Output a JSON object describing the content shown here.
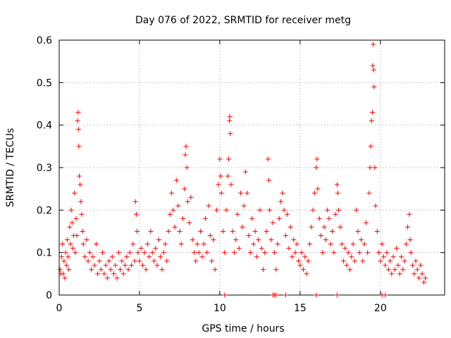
{
  "chart_data": {
    "type": "scatter",
    "title": "Day 076 of 2022, SRMTID for receiver metg",
    "xlabel": "GPS time / hours",
    "ylabel": "SRMTID / TECUs",
    "xlim": [
      0,
      24
    ],
    "ylim": [
      0,
      0.6
    ],
    "x_ticks": [
      0,
      5,
      10,
      15,
      20
    ],
    "y_ticks": [
      0,
      0.1,
      0.2,
      0.3,
      0.4,
      0.5,
      0.6
    ],
    "x_tick_labels": [
      "0",
      "5",
      "10",
      "15",
      "20"
    ],
    "y_tick_labels": [
      "0",
      "0.1",
      "0.2",
      "0.3",
      "0.4",
      "0.5",
      "0.6"
    ],
    "grid": true,
    "marker": "+",
    "color": "#ff0000",
    "series": [
      {
        "name": "SRMTID",
        "points": [
          [
            0.05,
            0.06
          ],
          [
            0.1,
            0.05
          ],
          [
            0.15,
            0.09
          ],
          [
            0.2,
            0.12
          ],
          [
            0.25,
            0.05
          ],
          [
            0.3,
            0.08
          ],
          [
            0.35,
            0.04
          ],
          [
            0.4,
            0.1
          ],
          [
            0.45,
            0.07
          ],
          [
            0.5,
            0.13
          ],
          [
            0.55,
            0.09
          ],
          [
            0.6,
            0.06
          ],
          [
            0.65,
            0.16
          ],
          [
            0.7,
            0.12
          ],
          [
            0.75,
            0.2
          ],
          [
            0.8,
            0.17
          ],
          [
            0.85,
            0.11
          ],
          [
            0.9,
            0.14
          ],
          [
            0.95,
            0.24
          ],
          [
            1.0,
            0.1
          ],
          [
            1.05,
            0.18
          ],
          [
            1.1,
            0.14
          ],
          [
            1.15,
            0.41
          ],
          [
            1.18,
            0.43
          ],
          [
            1.2,
            0.39
          ],
          [
            1.22,
            0.35
          ],
          [
            1.25,
            0.28
          ],
          [
            1.3,
            0.26
          ],
          [
            1.35,
            0.22
          ],
          [
            1.4,
            0.19
          ],
          [
            1.45,
            0.15
          ],
          [
            1.5,
            0.12
          ],
          [
            1.6,
            0.09
          ],
          [
            1.7,
            0.13
          ],
          [
            1.8,
            0.08
          ],
          [
            1.9,
            0.1
          ],
          [
            2.0,
            0.06
          ],
          [
            2.1,
            0.09
          ],
          [
            2.2,
            0.07
          ],
          [
            2.3,
            0.12
          ],
          [
            2.4,
            0.05
          ],
          [
            2.5,
            0.08
          ],
          [
            2.6,
            0.06
          ],
          [
            2.7,
            0.1
          ],
          [
            2.8,
            0.05
          ],
          [
            2.9,
            0.07
          ],
          [
            3.0,
            0.04
          ],
          [
            3.1,
            0.08
          ],
          [
            3.2,
            0.06
          ],
          [
            3.3,
            0.09
          ],
          [
            3.4,
            0.05
          ],
          [
            3.5,
            0.07
          ],
          [
            3.6,
            0.04
          ],
          [
            3.7,
            0.1
          ],
          [
            3.8,
            0.06
          ],
          [
            3.9,
            0.08
          ],
          [
            4.0,
            0.05
          ],
          [
            4.1,
            0.07
          ],
          [
            4.2,
            0.09
          ],
          [
            4.3,
            0.06
          ],
          [
            4.4,
            0.1
          ],
          [
            4.5,
            0.07
          ],
          [
            4.6,
            0.12
          ],
          [
            4.7,
            0.08
          ],
          [
            4.75,
            0.22
          ],
          [
            4.8,
            0.19
          ],
          [
            4.85,
            0.15
          ],
          [
            4.9,
            0.1
          ],
          [
            5.0,
            0.08
          ],
          [
            5.1,
            0.11
          ],
          [
            5.2,
            0.07
          ],
          [
            5.3,
            0.1
          ],
          [
            5.4,
            0.06
          ],
          [
            5.5,
            0.12
          ],
          [
            5.6,
            0.09
          ],
          [
            5.7,
            0.15
          ],
          [
            5.8,
            0.1
          ],
          [
            5.9,
            0.08
          ],
          [
            6.0,
            0.11
          ],
          [
            6.1,
            0.07
          ],
          [
            6.2,
            0.13
          ],
          [
            6.3,
            0.09
          ],
          [
            6.4,
            0.06
          ],
          [
            6.5,
            0.1
          ],
          [
            6.6,
            0.12
          ],
          [
            6.7,
            0.08
          ],
          [
            6.8,
            0.15
          ],
          [
            6.9,
            0.19
          ],
          [
            7.0,
            0.24
          ],
          [
            7.1,
            0.2
          ],
          [
            7.2,
            0.16
          ],
          [
            7.3,
            0.27
          ],
          [
            7.4,
            0.21
          ],
          [
            7.5,
            0.15
          ],
          [
            7.6,
            0.12
          ],
          [
            7.7,
            0.18
          ],
          [
            7.8,
            0.25
          ],
          [
            7.85,
            0.33
          ],
          [
            7.9,
            0.35
          ],
          [
            7.95,
            0.3
          ],
          [
            8.0,
            0.22
          ],
          [
            8.1,
            0.17
          ],
          [
            8.2,
            0.23
          ],
          [
            8.3,
            0.13
          ],
          [
            8.4,
            0.1
          ],
          [
            8.5,
            0.08
          ],
          [
            8.6,
            0.12
          ],
          [
            8.7,
            0.1
          ],
          [
            8.8,
            0.15
          ],
          [
            8.9,
            0.09
          ],
          [
            9.0,
            0.12
          ],
          [
            9.1,
            0.18
          ],
          [
            9.2,
            0.1
          ],
          [
            9.3,
            0.21
          ],
          [
            9.4,
            0.14
          ],
          [
            9.5,
            0.08
          ],
          [
            9.6,
            0.13
          ],
          [
            9.7,
            0.06
          ],
          [
            9.8,
            0.2
          ],
          [
            9.9,
            0.26
          ],
          [
            10.0,
            0.32
          ],
          [
            10.05,
            0.28
          ],
          [
            10.1,
            0.24
          ],
          [
            10.2,
            0.15
          ],
          [
            10.3,
            0.1
          ],
          [
            10.4,
            0.2
          ],
          [
            10.5,
            0.28
          ],
          [
            10.55,
            0.32
          ],
          [
            10.6,
            0.41
          ],
          [
            10.62,
            0.42
          ],
          [
            10.65,
            0.38
          ],
          [
            10.7,
            0.26
          ],
          [
            10.8,
            0.15
          ],
          [
            10.9,
            0.1
          ],
          [
            11.0,
            0.13
          ],
          [
            11.1,
            0.19
          ],
          [
            11.2,
            0.11
          ],
          [
            11.3,
            0.24
          ],
          [
            11.4,
            0.16
          ],
          [
            11.5,
            0.21
          ],
          [
            11.6,
            0.29
          ],
          [
            11.7,
            0.24
          ],
          [
            11.8,
            0.14
          ],
          [
            11.9,
            0.1
          ],
          [
            12.0,
            0.18
          ],
          [
            12.1,
            0.12
          ],
          [
            12.2,
            0.15
          ],
          [
            12.3,
            0.09
          ],
          [
            12.4,
            0.13
          ],
          [
            12.5,
            0.2
          ],
          [
            12.6,
            0.11
          ],
          [
            12.7,
            0.06
          ],
          [
            12.8,
            0.1
          ],
          [
            12.9,
            0.15
          ],
          [
            13.0,
            0.32
          ],
          [
            13.05,
            0.27
          ],
          [
            13.1,
            0.2
          ],
          [
            13.2,
            0.13
          ],
          [
            13.3,
            0.17
          ],
          [
            13.4,
            0.1
          ],
          [
            13.5,
            0.06
          ],
          [
            13.6,
            0.12
          ],
          [
            13.7,
            0.18
          ],
          [
            13.8,
            0.22
          ],
          [
            13.9,
            0.24
          ],
          [
            14.0,
            0.2
          ],
          [
            14.1,
            0.14
          ],
          [
            14.2,
            0.19
          ],
          [
            14.3,
            0.11
          ],
          [
            14.4,
            0.16
          ],
          [
            14.5,
            0.09
          ],
          [
            14.6,
            0.13
          ],
          [
            14.7,
            0.1
          ],
          [
            14.8,
            0.12
          ],
          [
            14.9,
            0.08
          ],
          [
            15.0,
            0.07
          ],
          [
            15.1,
            0.1
          ],
          [
            15.2,
            0.06
          ],
          [
            15.3,
            0.09
          ],
          [
            15.4,
            0.05
          ],
          [
            15.5,
            0.08
          ],
          [
            15.6,
            0.12
          ],
          [
            15.7,
            0.16
          ],
          [
            15.8,
            0.2
          ],
          [
            15.9,
            0.24
          ],
          [
            16.0,
            0.3
          ],
          [
            16.05,
            0.32
          ],
          [
            16.1,
            0.25
          ],
          [
            16.2,
            0.18
          ],
          [
            16.3,
            0.14
          ],
          [
            16.4,
            0.1
          ],
          [
            16.5,
            0.16
          ],
          [
            16.6,
            0.13
          ],
          [
            16.7,
            0.2
          ],
          [
            16.8,
            0.18
          ],
          [
            16.9,
            0.12
          ],
          [
            17.0,
            0.15
          ],
          [
            17.1,
            0.1
          ],
          [
            17.2,
            0.19
          ],
          [
            17.3,
            0.26
          ],
          [
            17.35,
            0.24
          ],
          [
            17.4,
            0.2
          ],
          [
            17.5,
            0.16
          ],
          [
            17.6,
            0.12
          ],
          [
            17.7,
            0.08
          ],
          [
            17.8,
            0.11
          ],
          [
            17.9,
            0.07
          ],
          [
            18.0,
            0.1
          ],
          [
            18.1,
            0.06
          ],
          [
            18.2,
            0.09
          ],
          [
            18.3,
            0.12
          ],
          [
            18.4,
            0.08
          ],
          [
            18.5,
            0.2
          ],
          [
            18.6,
            0.15
          ],
          [
            18.7,
            0.1
          ],
          [
            18.8,
            0.13
          ],
          [
            18.9,
            0.08
          ],
          [
            19.0,
            0.12
          ],
          [
            19.1,
            0.17
          ],
          [
            19.2,
            0.1
          ],
          [
            19.3,
            0.24
          ],
          [
            19.35,
            0.3
          ],
          [
            19.4,
            0.35
          ],
          [
            19.45,
            0.41
          ],
          [
            19.5,
            0.43
          ],
          [
            19.52,
            0.54
          ],
          [
            19.55,
            0.59
          ],
          [
            19.58,
            0.53
          ],
          [
            19.6,
            0.49
          ],
          [
            19.65,
            0.3
          ],
          [
            19.7,
            0.21
          ],
          [
            19.8,
            0.15
          ],
          [
            19.9,
            0.1
          ],
          [
            20.0,
            0.08
          ],
          [
            20.1,
            0.12
          ],
          [
            20.2,
            0.09
          ],
          [
            20.3,
            0.07
          ],
          [
            20.4,
            0.1
          ],
          [
            20.5,
            0.06
          ],
          [
            20.6,
            0.08
          ],
          [
            20.7,
            0.05
          ],
          [
            20.8,
            0.09
          ],
          [
            20.9,
            0.06
          ],
          [
            21.0,
            0.11
          ],
          [
            21.1,
            0.07
          ],
          [
            21.2,
            0.05
          ],
          [
            21.3,
            0.09
          ],
          [
            21.4,
            0.06
          ],
          [
            21.5,
            0.08
          ],
          [
            21.6,
            0.12
          ],
          [
            21.7,
            0.16
          ],
          [
            21.8,
            0.19
          ],
          [
            21.85,
            0.13
          ],
          [
            21.9,
            0.1
          ],
          [
            22.0,
            0.07
          ],
          [
            22.1,
            0.05
          ],
          [
            22.2,
            0.08
          ],
          [
            22.3,
            0.06
          ],
          [
            22.4,
            0.04
          ],
          [
            22.5,
            0.07
          ],
          [
            22.6,
            0.05
          ],
          [
            22.7,
            0.03
          ],
          [
            22.8,
            0.04
          ],
          [
            10.3,
            0.0
          ],
          [
            13.3,
            0.0
          ],
          [
            13.4,
            0.0
          ],
          [
            13.5,
            0.0
          ],
          [
            14.1,
            0.0
          ],
          [
            16.0,
            0.0
          ],
          [
            17.3,
            0.0
          ],
          [
            20.1,
            0.0
          ],
          [
            20.3,
            0.0
          ]
        ]
      }
    ]
  }
}
